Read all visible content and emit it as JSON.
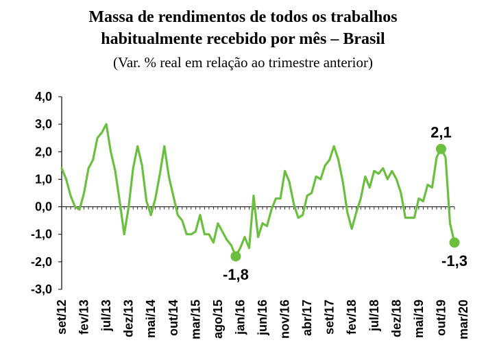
{
  "chart_data": {
    "type": "line",
    "title_line1": "Massa de rendimentos de todos os trabalhos",
    "title_line2": "habitualmente recebido por mês – Brasil",
    "subtitle": "(Var. % real em relação ao trimestre anterior)",
    "ylim": [
      -3.0,
      4.0
    ],
    "yticks": [
      "4,0",
      "3,0",
      "2,0",
      "1,0",
      "0,0",
      "-1,0",
      "-2,0",
      "-3,0"
    ],
    "ytick_values": [
      4,
      3,
      2,
      1,
      0,
      -1,
      -2,
      -3
    ],
    "xtick_labels": [
      "set/12",
      "fev/13",
      "jul/13",
      "dez/13",
      "mai/14",
      "out/14",
      "mar/15",
      "ago/15",
      "jan/16",
      "jun/16",
      "nov/16",
      "abr/17",
      "set/17",
      "fev/18",
      "jul/18",
      "dez/18",
      "mai/19",
      "out/19",
      "mar/20"
    ],
    "grid": false,
    "line_color": "#6abf3f",
    "series": [
      {
        "values": [
          1.4,
          1.0,
          0.4,
          0.0,
          -0.1,
          0.5,
          1.4,
          1.7,
          2.5,
          2.7,
          3.0,
          2.0,
          1.3,
          0.2,
          -1.0,
          0.0,
          1.4,
          2.2,
          1.5,
          0.2,
          -0.3,
          0.3,
          1.2,
          2.2,
          1.1,
          0.4,
          -0.3,
          -0.5,
          -1.0,
          -1.0,
          -0.9,
          -0.3,
          -1.0,
          -1.0,
          -1.3,
          -0.6,
          -0.9,
          -1.2,
          -1.4,
          -1.8,
          -1.5,
          -1.1,
          -1.5,
          0.4,
          -1.1,
          -0.6,
          -0.7,
          -0.1,
          0.3,
          0.3,
          1.3,
          0.9,
          0.1,
          -0.4,
          -0.3,
          0.4,
          0.5,
          1.1,
          1.0,
          1.5,
          1.7,
          2.2,
          1.7,
          0.9,
          -0.2,
          -0.8,
          -0.2,
          0.3,
          1.1,
          0.7,
          1.3,
          1.2,
          1.4,
          1.0,
          1.3,
          1.0,
          0.5,
          -0.4,
          -0.4,
          -0.4,
          0.3,
          0.2,
          0.8,
          0.7,
          1.8,
          2.1,
          1.8,
          -0.6,
          -1.3
        ]
      }
    ],
    "highlights": [
      {
        "index": 39,
        "label": "-1,8",
        "pos": "below"
      },
      {
        "index": 85,
        "label": "2,1",
        "pos": "above"
      },
      {
        "index": 88,
        "label": "-1,3",
        "pos": "below"
      }
    ]
  }
}
